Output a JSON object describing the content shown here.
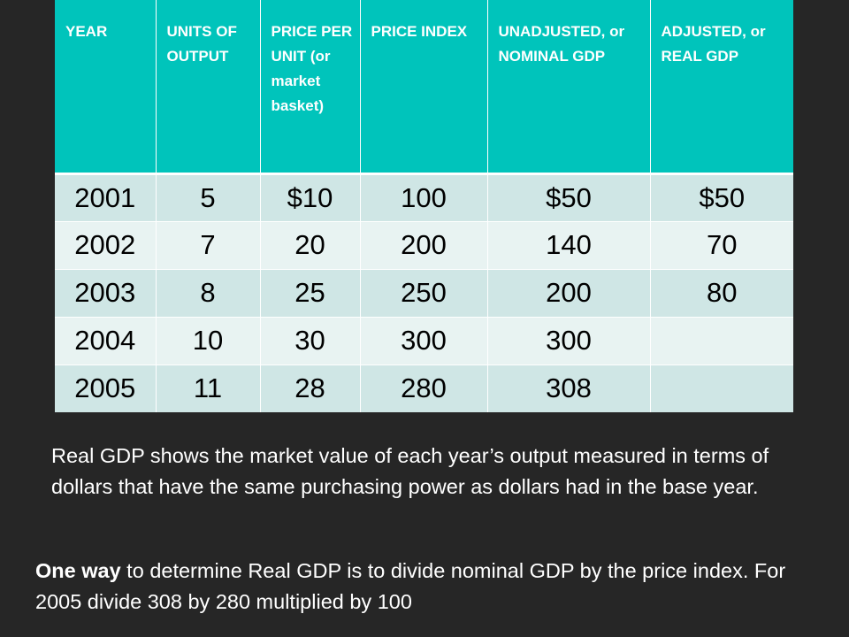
{
  "table": {
    "headers": [
      "YEAR",
      "UNITS OF OUTPUT",
      "PRICE PER UNIT (or market basket)",
      "PRICE INDEX",
      "UNADJUSTED, or NOMINAL GDP",
      "ADJUSTED, or REAL GDP"
    ],
    "rows": [
      [
        "2001",
        "5",
        "$10",
        "100",
        "$50",
        "$50"
      ],
      [
        "2002",
        "7",
        "20",
        "200",
        "140",
        "70"
      ],
      [
        "2003",
        "8",
        "25",
        "250",
        "200",
        "80"
      ],
      [
        "2004",
        "10",
        "30",
        "300",
        "300",
        ""
      ],
      [
        "2005",
        "11",
        "28",
        "280",
        "308",
        ""
      ]
    ]
  },
  "explanation": "Real GDP shows the market value of each year’s output measured in terms of dollars that have the same purchasing power as dollars had in the base year.",
  "method": {
    "lead": "One way",
    "rest": " to determine Real GDP is to divide nominal GDP by the price index.  For 2005 divide 308 by 280 multiplied by 100"
  },
  "colors": {
    "header_bg": "#00c4bb",
    "row_odd": "#cfe6e5",
    "row_even": "#e8f3f2",
    "page_bg": "#262626"
  }
}
